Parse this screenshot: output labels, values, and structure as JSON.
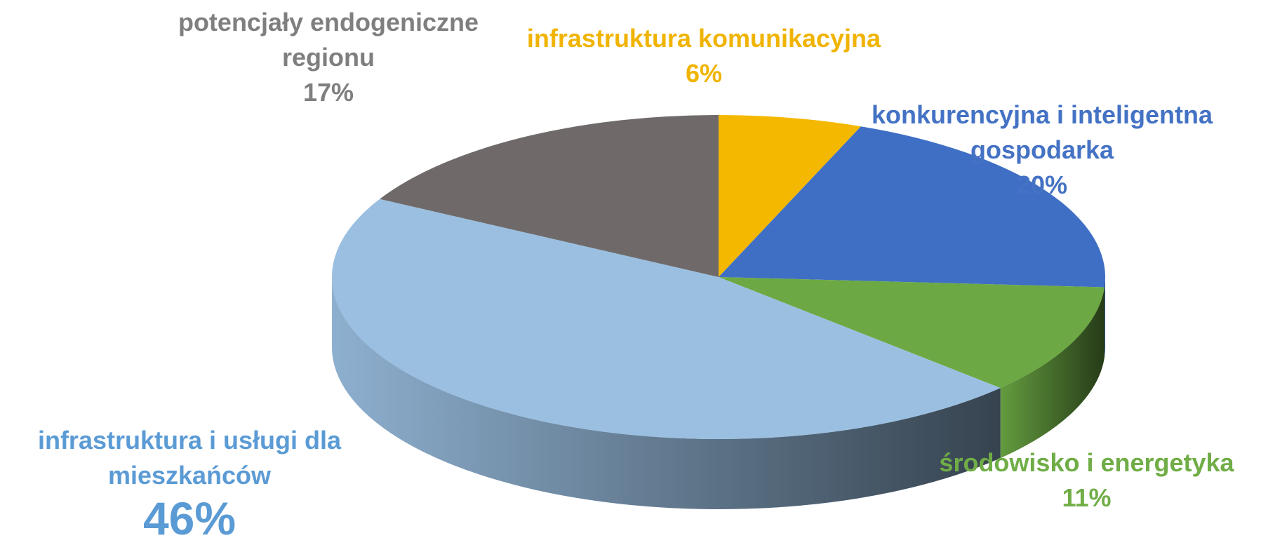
{
  "chart_data": {
    "type": "pie3d",
    "categories": [
      "infrastruktura komunikacyjna",
      "konkurencyjna i inteligentna gospodarka",
      "środowisko i energetyka",
      "infrastruktura i usługi dla mieszkańców",
      "potencjały endogeniczne regionu"
    ],
    "values": [
      6,
      20,
      11,
      46,
      17
    ],
    "value_labels": [
      "6%",
      "20%",
      "11%",
      "46%",
      "17%"
    ],
    "colors": [
      "#f5b800",
      "#3f6fc4",
      "#6ca944",
      "#9abfe1",
      "#6f6a69"
    ],
    "label_colors": [
      "#f0b400",
      "#4472c4",
      "#70ad47",
      "#5b9bd5",
      "#7f7f7f"
    ]
  }
}
